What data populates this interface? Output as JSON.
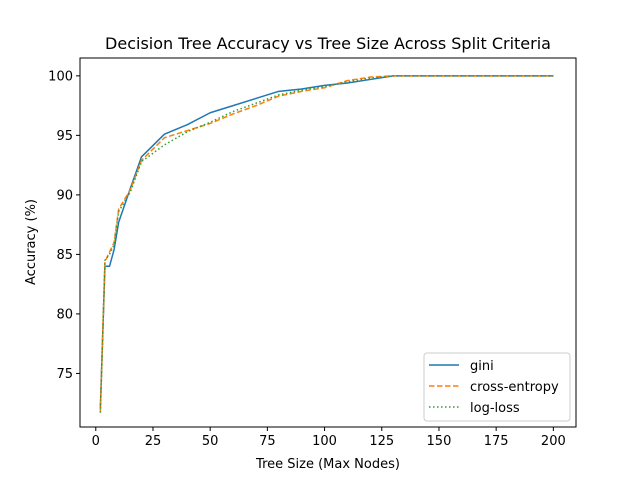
{
  "chart_data": {
    "type": "line",
    "title": "Decision Tree Accuracy vs Tree Size Across Split Criteria",
    "xlabel": "Tree Size (Max Nodes)",
    "ylabel": "Accuracy (%)",
    "xlim": [
      -6.9,
      209.9
    ],
    "ylim": [
      70.5,
      101.5
    ],
    "xticks": [
      0,
      25,
      50,
      75,
      100,
      125,
      150,
      175,
      200
    ],
    "yticks": [
      75,
      80,
      85,
      90,
      95,
      100
    ],
    "legend_position": "lower-right",
    "grid": false,
    "series": [
      {
        "name": "gini",
        "color": "#1f77b4",
        "dash": "solid",
        "x": [
          2,
          4,
          6,
          8,
          10,
          15,
          20,
          30,
          40,
          50,
          60,
          70,
          80,
          90,
          100,
          110,
          120,
          130,
          140,
          150,
          160,
          170,
          180,
          190,
          200
        ],
        "y": [
          72.1,
          84.0,
          84.0,
          85.4,
          87.7,
          90.5,
          93.2,
          95.1,
          95.9,
          96.9,
          97.5,
          98.1,
          98.7,
          98.9,
          99.2,
          99.4,
          99.7,
          100.0,
          100.0,
          100.0,
          100.0,
          100.0,
          100.0,
          100.0,
          100.0
        ]
      },
      {
        "name": "cross-entropy",
        "color": "#ff7f0e",
        "dash": "dashed",
        "x": [
          2,
          4,
          6,
          8,
          10,
          15,
          20,
          30,
          40,
          50,
          60,
          70,
          80,
          90,
          100,
          110,
          120,
          130,
          140,
          150,
          160,
          170,
          180,
          190,
          200
        ],
        "y": [
          71.8,
          84.4,
          85.2,
          86.0,
          88.8,
          90.4,
          92.9,
          94.8,
          95.4,
          96.0,
          96.8,
          97.5,
          98.3,
          98.7,
          99.0,
          99.6,
          99.9,
          100.0,
          100.0,
          100.0,
          100.0,
          100.0,
          100.0,
          100.0,
          100.0
        ]
      },
      {
        "name": "log-loss",
        "color": "#2ca02c",
        "dash": "dotted",
        "x": [
          2,
          4,
          6,
          8,
          10,
          15,
          20,
          30,
          40,
          50,
          60,
          70,
          80,
          90,
          100,
          110,
          120,
          130,
          140,
          150,
          160,
          170,
          180,
          190,
          200
        ],
        "y": [
          71.7,
          84.5,
          85.0,
          85.8,
          88.6,
          90.2,
          92.8,
          94.2,
          95.3,
          96.1,
          97.0,
          97.7,
          98.4,
          98.8,
          99.1,
          99.5,
          99.8,
          100.0,
          100.0,
          100.0,
          100.0,
          100.0,
          100.0,
          100.0,
          100.0
        ]
      }
    ]
  }
}
